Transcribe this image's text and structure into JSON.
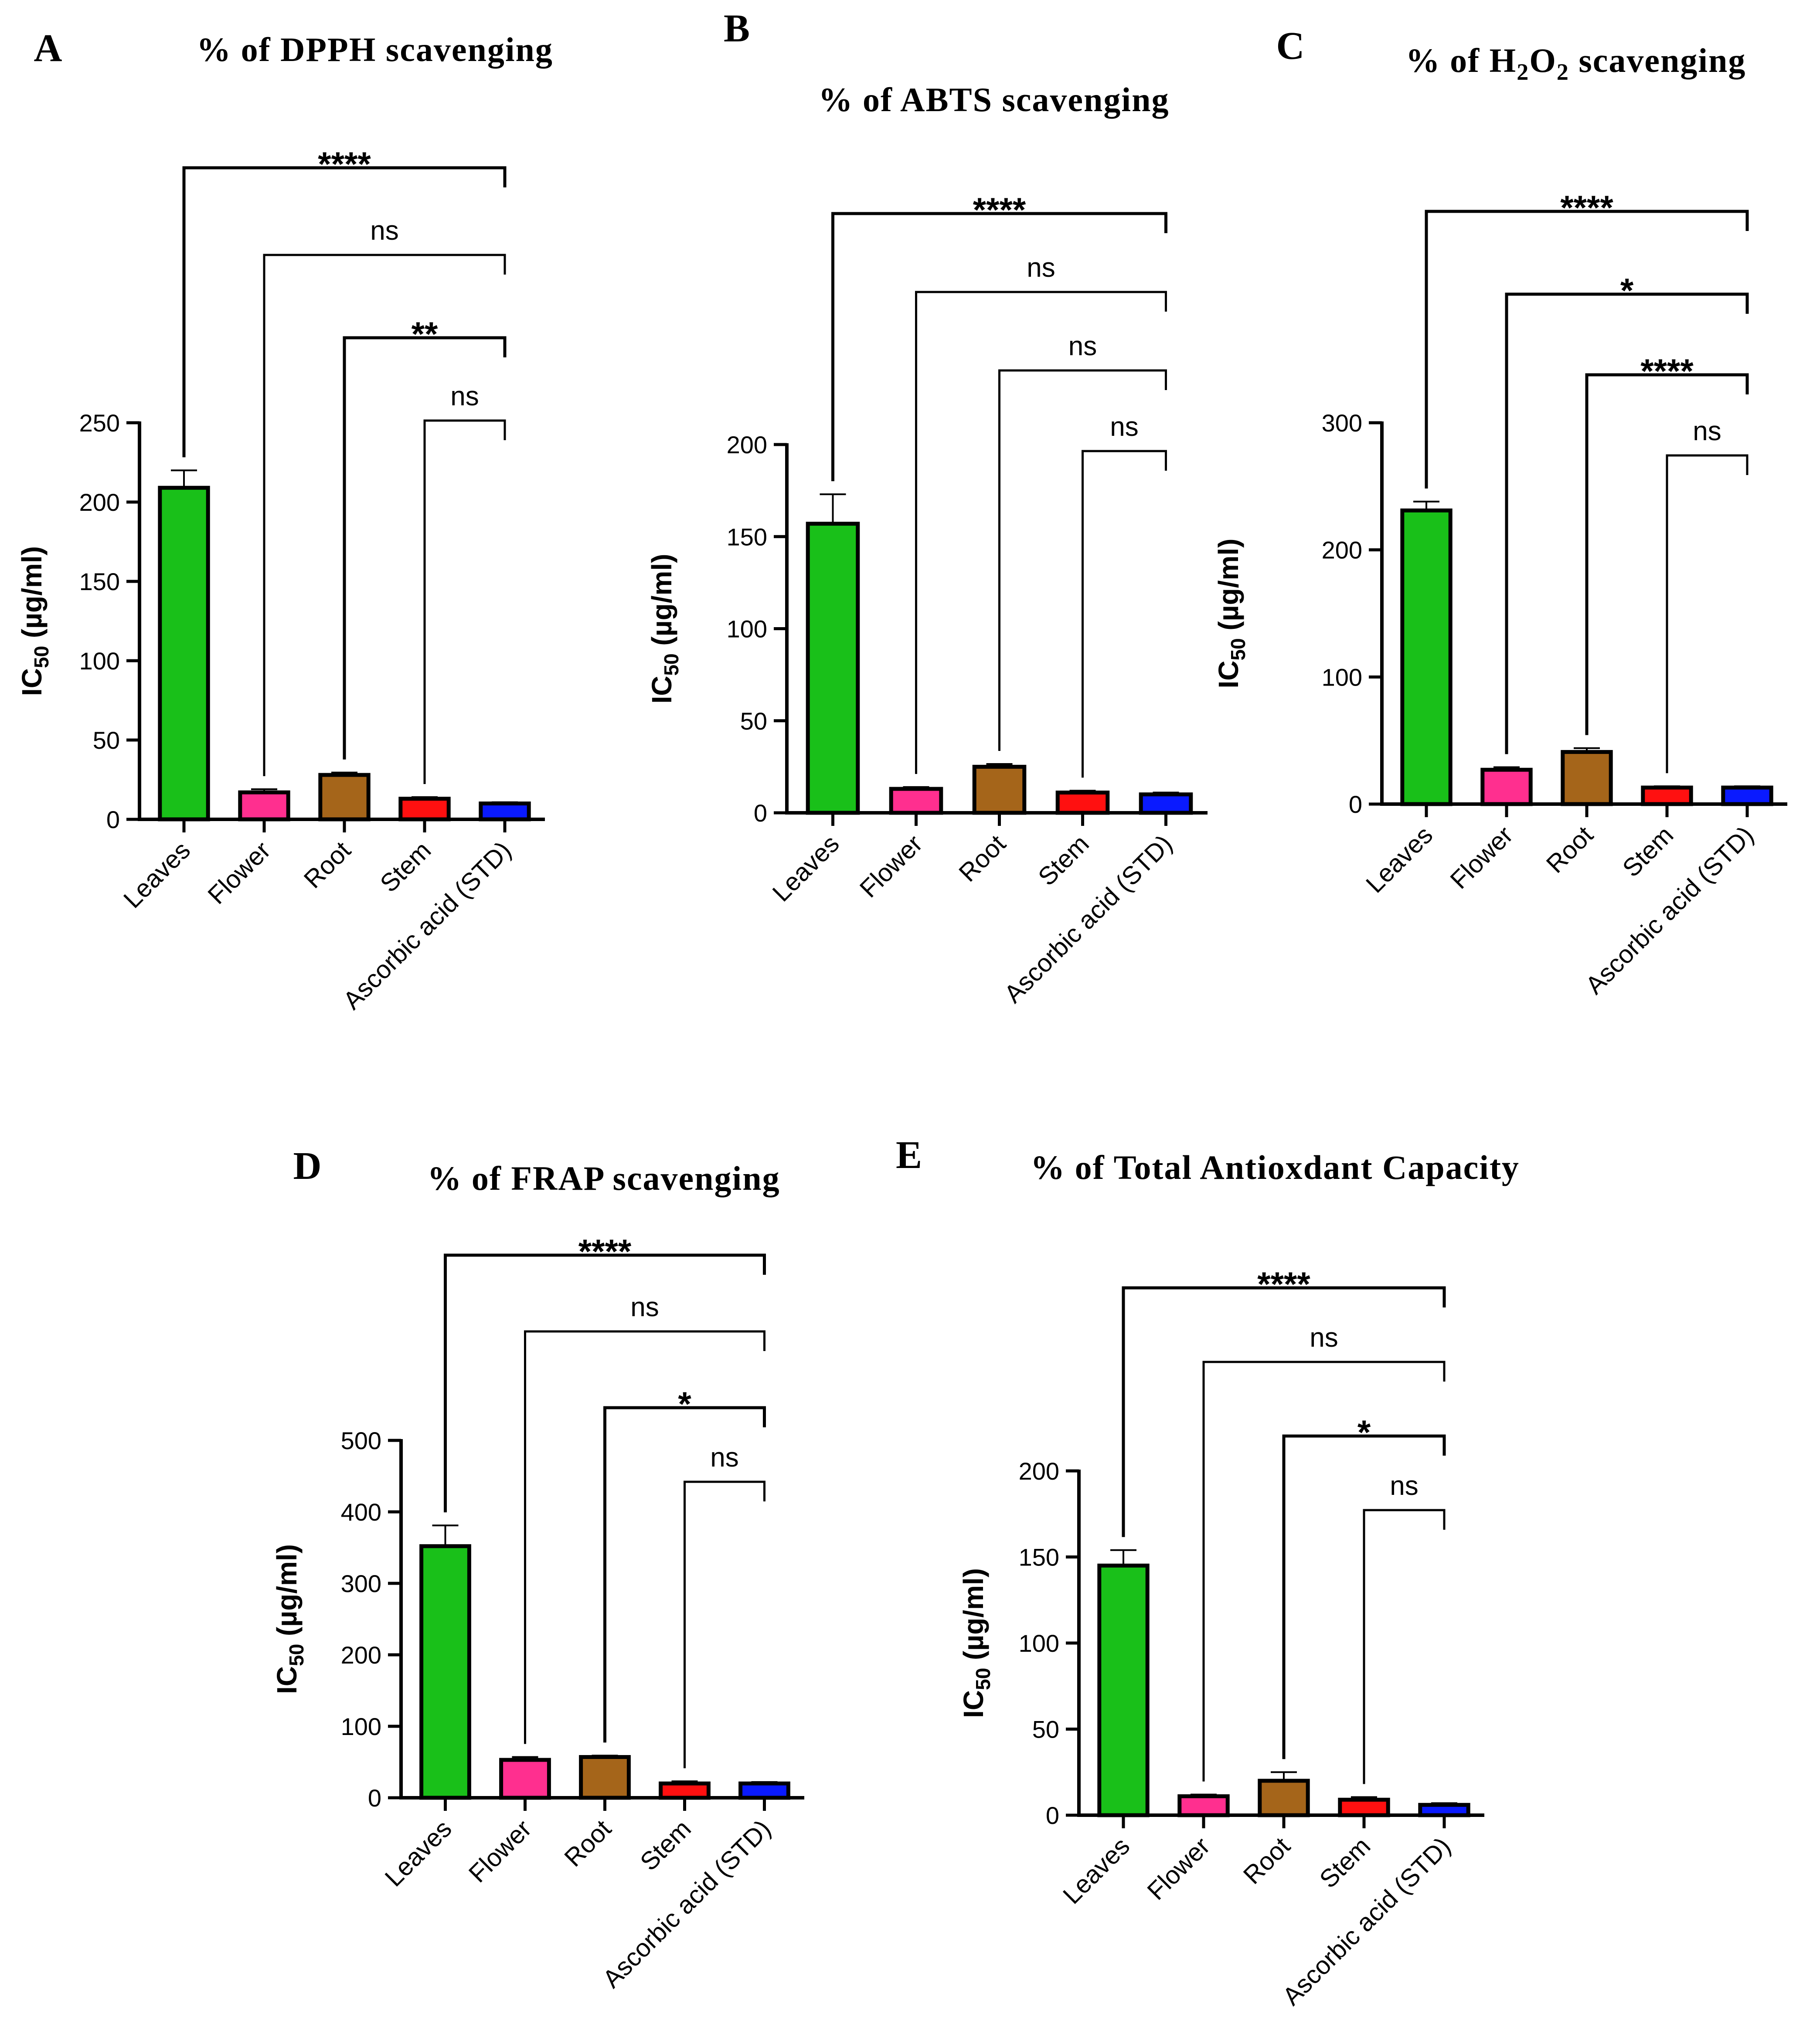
{
  "chart_data": [
    {
      "panel": "A",
      "type": "bar",
      "title": "% of DPPH scavenging",
      "title_parts": [
        {
          "t": "% of DPPH scavenging"
        }
      ],
      "ylabel_main": "IC",
      "ylabel_sub": "50",
      "ylabel_unit": " (µg/ml)",
      "categories": [
        "Leaves",
        "Flower",
        "Root",
        "Stem",
        "Ascorbic acid (STD)"
      ],
      "values": [
        209,
        17,
        28,
        13,
        10
      ],
      "errors": [
        11,
        2,
        1.5,
        1,
        0.8
      ],
      "colors": [
        "#19c019",
        "#ff2f8f",
        "#a5651a",
        "#ff1010",
        "#0a1aff"
      ],
      "ylim": [
        0,
        250
      ],
      "yticks": [
        0,
        50,
        100,
        150,
        200,
        250
      ],
      "comparisons": [
        {
          "from": 0,
          "label": "****",
          "style": "stars"
        },
        {
          "from": 1,
          "label": "ns",
          "style": "ns"
        },
        {
          "from": 2,
          "label": "**",
          "style": "stars"
        },
        {
          "from": 3,
          "label": "ns",
          "style": "ns"
        }
      ]
    },
    {
      "panel": "B",
      "type": "bar",
      "title": "% of ABTS scavenging",
      "title_parts": [
        {
          "t": "% of ABTS scavenging"
        }
      ],
      "ylabel_main": "IC",
      "ylabel_sub": "50",
      "ylabel_unit": " (µg/ml)",
      "categories": [
        "Leaves",
        "Flower",
        "Root",
        "Stem",
        "Ascorbic acid (STD)"
      ],
      "values": [
        157,
        13,
        25,
        11,
        10
      ],
      "errors": [
        16,
        1,
        1.5,
        1,
        1
      ],
      "colors": [
        "#19c019",
        "#ff2f8f",
        "#a5651a",
        "#ff1010",
        "#0a1aff"
      ],
      "ylim": [
        0,
        200
      ],
      "yticks": [
        0,
        50,
        100,
        150,
        200
      ],
      "comparisons": [
        {
          "from": 0,
          "label": "****",
          "style": "stars"
        },
        {
          "from": 1,
          "label": "ns",
          "style": "ns"
        },
        {
          "from": 2,
          "label": "ns",
          "style": "ns"
        },
        {
          "from": 3,
          "label": "ns",
          "style": "ns"
        }
      ]
    },
    {
      "panel": "C",
      "type": "bar",
      "title": "% of H2O2 scavenging",
      "title_parts": [
        {
          "t": "% of H"
        },
        {
          "t": "2",
          "sub": true
        },
        {
          "t": "O"
        },
        {
          "t": "2",
          "sub": true
        },
        {
          "t": " scavenging"
        }
      ],
      "ylabel_main": "IC",
      "ylabel_sub": "50",
      "ylabel_unit": " (µg/ml)",
      "categories": [
        "Leaves",
        "Flower",
        "Root",
        "Stem",
        "Ascorbic acid (STD)"
      ],
      "values": [
        231,
        27,
        41,
        13,
        13
      ],
      "errors": [
        7,
        2,
        3,
        1,
        1
      ],
      "colors": [
        "#19c019",
        "#ff2f8f",
        "#a5651a",
        "#ff1010",
        "#0a1aff"
      ],
      "ylim": [
        0,
        300
      ],
      "yticks": [
        0,
        100,
        200,
        300
      ],
      "comparisons": [
        {
          "from": 0,
          "label": "****",
          "style": "stars"
        },
        {
          "from": 1,
          "label": "*",
          "style": "stars"
        },
        {
          "from": 2,
          "label": "****",
          "style": "stars"
        },
        {
          "from": 3,
          "label": "ns",
          "style": "ns"
        }
      ]
    },
    {
      "panel": "D",
      "type": "bar",
      "title": "% of FRAP scavenging",
      "title_parts": [
        {
          "t": "% of FRAP scavenging"
        }
      ],
      "ylabel_main": "IC",
      "ylabel_sub": "50",
      "ylabel_unit": " (µg/ml)",
      "categories": [
        "Leaves",
        "Flower",
        "Root",
        "Stem",
        "Ascorbic acid (STD)"
      ],
      "values": [
        352,
        53,
        57,
        20,
        20
      ],
      "errors": [
        29,
        4,
        2,
        3,
        2
      ],
      "colors": [
        "#19c019",
        "#ff2f8f",
        "#a5651a",
        "#ff1010",
        "#0a1aff"
      ],
      "ylim": [
        0,
        500
      ],
      "yticks": [
        0,
        100,
        200,
        300,
        400,
        500
      ],
      "comparisons": [
        {
          "from": 0,
          "label": "****",
          "style": "stars"
        },
        {
          "from": 1,
          "label": "ns",
          "style": "ns"
        },
        {
          "from": 2,
          "label": "*",
          "style": "stars"
        },
        {
          "from": 3,
          "label": "ns",
          "style": "ns"
        }
      ]
    },
    {
      "panel": "E",
      "type": "bar",
      "title": "% of Total Antioxdant Capacity",
      "title_parts": [
        {
          "t": "% of Total Antioxdant Capacity"
        }
      ],
      "ylabel_main": "IC",
      "ylabel_sub": "50",
      "ylabel_unit": " (µg/ml)",
      "categories": [
        "Leaves",
        "Flower",
        "Root",
        "Stem",
        "Ascorbic acid (STD)"
      ],
      "values": [
        145,
        11,
        20,
        9,
        6
      ],
      "errors": [
        9,
        1,
        5,
        1.5,
        1
      ],
      "colors": [
        "#19c019",
        "#ff2f8f",
        "#a5651a",
        "#ff1010",
        "#0a1aff"
      ],
      "ylim": [
        0,
        200
      ],
      "yticks": [
        0,
        50,
        100,
        150,
        200
      ],
      "comparisons": [
        {
          "from": 0,
          "label": "****",
          "style": "stars"
        },
        {
          "from": 1,
          "label": "ns",
          "style": "ns"
        },
        {
          "from": 2,
          "label": "*",
          "style": "stars"
        },
        {
          "from": 3,
          "label": "ns",
          "style": "ns"
        }
      ]
    }
  ]
}
